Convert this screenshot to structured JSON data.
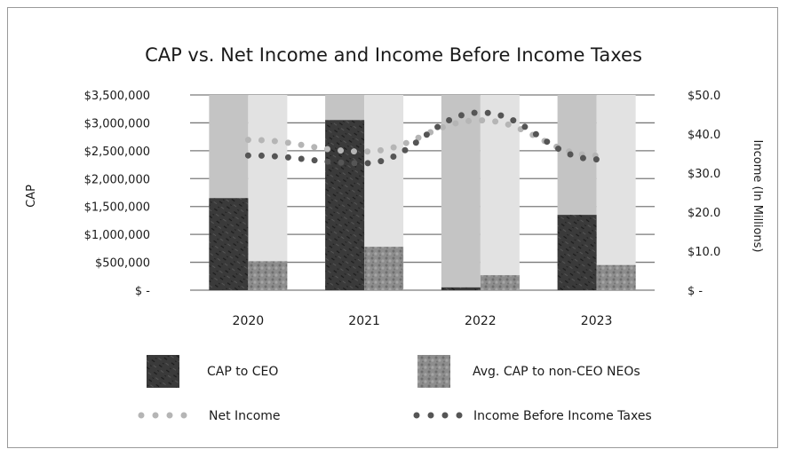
{
  "chart_data": {
    "type": "bar",
    "title": "CAP vs. Net Income and Income Before Income Taxes",
    "categories": [
      "2020",
      "2021",
      "2022",
      "2023"
    ],
    "ylabel_left": "CAP",
    "ylabel_right": "Income (In Millions)",
    "ylim_left": [
      0,
      3500000
    ],
    "ylim_right": [
      0,
      50
    ],
    "left_ticks": [
      {
        "value": 0,
        "label": "$ -"
      },
      {
        "value": 500000,
        "label": "$500,000"
      },
      {
        "value": 1000000,
        "label": "$1,000,000"
      },
      {
        "value": 1500000,
        "label": "$1,500,000"
      },
      {
        "value": 2000000,
        "label": "$2,000,000"
      },
      {
        "value": 2500000,
        "label": "$2,500,000"
      },
      {
        "value": 3000000,
        "label": "$3,000,000"
      },
      {
        "value": 3500000,
        "label": "$3,500,000"
      }
    ],
    "right_ticks": [
      {
        "value": 0,
        "label": "$ -"
      },
      {
        "value": 10,
        "label": "$10.0"
      },
      {
        "value": 20,
        "label": "$20.0"
      },
      {
        "value": 30,
        "label": "$30.0"
      },
      {
        "value": 40,
        "label": "$40.0"
      },
      {
        "value": 50,
        "label": "$50.0"
      }
    ],
    "bar_series": [
      {
        "name": "CAP to CEO",
        "values": [
          1650000,
          3050000,
          50000,
          1350000
        ],
        "color": "#3a3a3a"
      },
      {
        "name": "Avg. CAP to non-CEO NEOs",
        "values": [
          520000,
          780000,
          270000,
          450000
        ],
        "color": "#8a8a8a"
      }
    ],
    "line_series": [
      {
        "name": "Net Income",
        "axis": "right",
        "values": [
          38.5,
          35.5,
          43.5,
          34.5
        ],
        "color": "#b5b5b5"
      },
      {
        "name": "Income Before Income Taxes",
        "axis": "right",
        "values": [
          34.5,
          32.5,
          45.5,
          33.5
        ],
        "color": "#555555"
      }
    ],
    "grid": true,
    "legend_position": "bottom"
  }
}
